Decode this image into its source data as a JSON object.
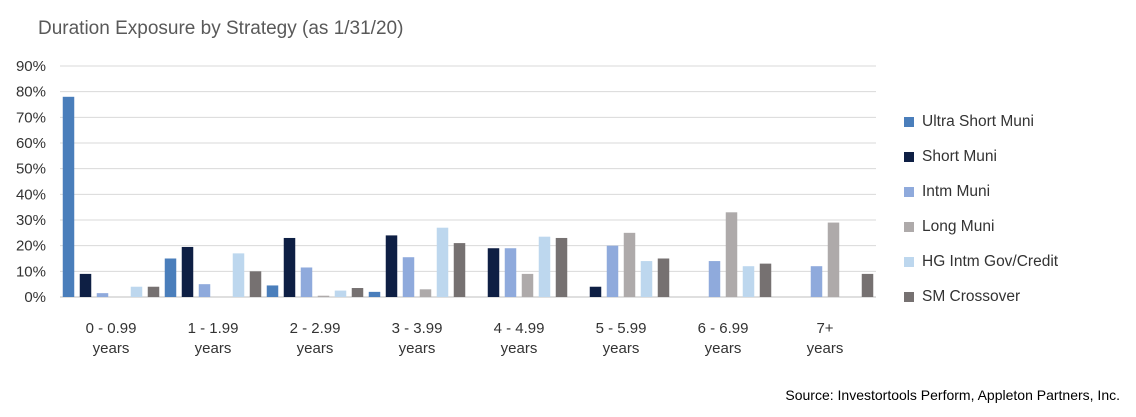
{
  "chart_data": {
    "type": "bar",
    "title": "Duration Exposure by Strategy (as 1/31/20)",
    "source": "Source: Investortools Perform, Appleton Partners, Inc.",
    "categories": [
      [
        "0 - 0.99",
        "years"
      ],
      [
        "1 - 1.99",
        "years"
      ],
      [
        "2 - 2.99",
        "years"
      ],
      [
        "3 - 3.99",
        "years"
      ],
      [
        "4 - 4.99",
        "years"
      ],
      [
        "5 - 5.99",
        "years"
      ],
      [
        "6 - 6.99",
        "years"
      ],
      [
        "7+",
        "years"
      ]
    ],
    "y_ticks": [
      "0%",
      "10%",
      "20%",
      "30%",
      "40%",
      "50%",
      "60%",
      "70%",
      "80%",
      "90%"
    ],
    "ylim": [
      0,
      90
    ],
    "legend_position": "right",
    "series": [
      {
        "name": "Ultra Short Muni",
        "color": "#4a7ebb",
        "values": [
          78,
          15,
          4.5,
          2,
          0,
          0,
          0,
          0
        ]
      },
      {
        "name": "Short Muni",
        "color": "#0e1f44",
        "values": [
          9,
          19.5,
          23,
          24,
          19,
          4,
          0,
          0
        ]
      },
      {
        "name": "Intm Muni",
        "color": "#8faadc",
        "values": [
          1.5,
          5,
          11.5,
          15.5,
          19,
          20,
          14,
          12
        ]
      },
      {
        "name": "Long Muni",
        "color": "#aeaaaa",
        "values": [
          0,
          0,
          0.5,
          3,
          9,
          25,
          33,
          29
        ]
      },
      {
        "name": "HG Intm Gov/Credit",
        "color": "#bdd7ee",
        "values": [
          4,
          17,
          2.5,
          27,
          23.5,
          14,
          12,
          0
        ]
      },
      {
        "name": "SM Crossover",
        "color": "#767171",
        "values": [
          4,
          10,
          3.5,
          21,
          23,
          15,
          13,
          9
        ]
      }
    ]
  }
}
